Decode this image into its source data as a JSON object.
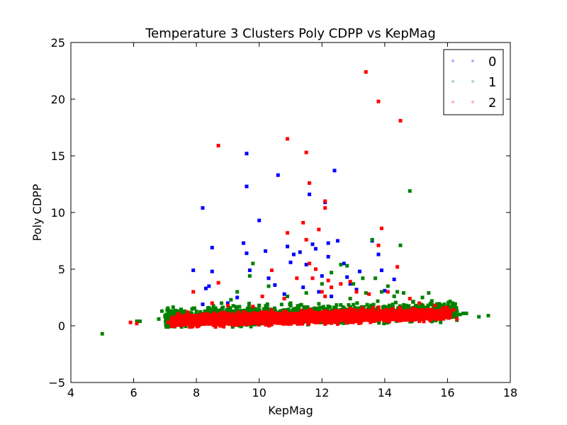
{
  "chart_data": {
    "type": "scatter",
    "title": "Temperature 3 Clusters Poly CDPP vs KepMag",
    "xlabel": "KepMag",
    "ylabel": "Poly CDPP",
    "xlim": [
      4,
      18
    ],
    "ylim": [
      -5,
      25
    ],
    "xticks": [
      "4",
      "6",
      "8",
      "10",
      "12",
      "14",
      "16",
      "18"
    ],
    "yticks": [
      "−5",
      "0",
      "5",
      "10",
      "15",
      "20",
      "25"
    ],
    "grid": false,
    "legend_position": "top-right",
    "series": [
      {
        "name": "0",
        "color": "#0000ff",
        "points": [
          [
            8.2,
            10.4
          ],
          [
            7.9,
            4.9
          ],
          [
            8.5,
            6.9
          ],
          [
            8.5,
            4.8
          ],
          [
            8.4,
            3.5
          ],
          [
            8.3,
            3.3
          ],
          [
            9.5,
            7.3
          ],
          [
            9.6,
            6.4
          ],
          [
            9.7,
            4.9
          ],
          [
            9.6,
            15.2
          ],
          [
            9.6,
            12.3
          ],
          [
            10.0,
            9.3
          ],
          [
            10.2,
            6.6
          ],
          [
            10.6,
            13.3
          ],
          [
            10.9,
            7.0
          ],
          [
            11.0,
            5.6
          ],
          [
            11.1,
            6.3
          ],
          [
            11.3,
            6.5
          ],
          [
            11.5,
            5.4
          ],
          [
            11.6,
            11.6
          ],
          [
            11.7,
            7.2
          ],
          [
            11.8,
            6.8
          ],
          [
            12.1,
            10.9
          ],
          [
            12.2,
            7.3
          ],
          [
            12.2,
            6.1
          ],
          [
            12.4,
            13.7
          ],
          [
            12.5,
            7.5
          ],
          [
            12.7,
            5.5
          ],
          [
            12.0,
            4.4
          ],
          [
            12.9,
            3.7
          ],
          [
            13.1,
            3.2
          ],
          [
            13.6,
            7.5
          ],
          [
            13.8,
            6.3
          ],
          [
            13.9,
            4.9
          ],
          [
            14.3,
            4.1
          ],
          [
            14.0,
            3.1
          ],
          [
            10.3,
            4.2
          ],
          [
            10.5,
            3.6
          ],
          [
            9.3,
            2.5
          ],
          [
            9.0,
            2.0
          ],
          [
            8.2,
            1.9
          ],
          [
            8.8,
            1.4
          ],
          [
            11.9,
            3.0
          ],
          [
            12.3,
            2.6
          ],
          [
            11.4,
            3.4
          ],
          [
            12.8,
            4.3
          ],
          [
            13.2,
            4.8
          ],
          [
            10.8,
            2.8
          ]
        ]
      },
      {
        "name": "1",
        "color": "#008000",
        "points": [
          [
            5.0,
            -0.7
          ],
          [
            6.1,
            0.4
          ],
          [
            6.2,
            0.4
          ],
          [
            6.8,
            0.6
          ],
          [
            6.9,
            1.3
          ],
          [
            7.0,
            0.8
          ],
          [
            7.3,
            0.7
          ],
          [
            7.6,
            0.6
          ],
          [
            8.4,
            1.6
          ],
          [
            8.8,
            2.0
          ],
          [
            9.1,
            2.3
          ],
          [
            9.3,
            3.0
          ],
          [
            9.8,
            5.5
          ],
          [
            9.7,
            4.4
          ],
          [
            10.3,
            3.5
          ],
          [
            10.9,
            2.6
          ],
          [
            11.5,
            2.9
          ],
          [
            12.0,
            3.7
          ],
          [
            12.3,
            4.7
          ],
          [
            12.6,
            5.4
          ],
          [
            12.8,
            5.3
          ],
          [
            13.0,
            3.7
          ],
          [
            13.3,
            4.2
          ],
          [
            13.6,
            7.6
          ],
          [
            13.7,
            4.2
          ],
          [
            13.9,
            3.0
          ],
          [
            14.1,
            3.5
          ],
          [
            14.4,
            3.0
          ],
          [
            14.5,
            7.1
          ],
          [
            14.6,
            2.9
          ],
          [
            14.8,
            11.9
          ],
          [
            14.9,
            2.1
          ],
          [
            15.2,
            2.5
          ],
          [
            15.4,
            2.9
          ],
          [
            15.5,
            2.2
          ],
          [
            15.9,
            1.9
          ],
          [
            16.3,
            1.3
          ],
          [
            16.4,
            1.0
          ],
          [
            16.5,
            1.1
          ],
          [
            16.6,
            1.1
          ],
          [
            17.0,
            0.8
          ],
          [
            17.3,
            0.9
          ],
          [
            16.3,
            0.5
          ],
          [
            14.3,
            2.6
          ],
          [
            13.4,
            2.9
          ],
          [
            12.9,
            2.4
          ],
          [
            11.0,
            2.0
          ],
          [
            10.0,
            1.8
          ]
        ]
      },
      {
        "name": "2",
        "color": "#ff0000",
        "points": [
          [
            5.9,
            0.3
          ],
          [
            6.1,
            0.2
          ],
          [
            7.1,
            0.3
          ],
          [
            7.4,
            0.2
          ],
          [
            7.9,
            3.0
          ],
          [
            8.5,
            2.0
          ],
          [
            8.7,
            15.9
          ],
          [
            8.7,
            3.8
          ],
          [
            9.0,
            1.8
          ],
          [
            9.5,
            1.2
          ],
          [
            9.8,
            1.7
          ],
          [
            10.1,
            2.6
          ],
          [
            10.4,
            4.9
          ],
          [
            10.8,
            2.4
          ],
          [
            10.9,
            16.5
          ],
          [
            10.9,
            8.2
          ],
          [
            11.2,
            4.2
          ],
          [
            11.4,
            9.1
          ],
          [
            11.5,
            15.3
          ],
          [
            11.6,
            12.6
          ],
          [
            11.5,
            7.6
          ],
          [
            11.6,
            5.5
          ],
          [
            11.7,
            4.2
          ],
          [
            11.8,
            5.0
          ],
          [
            11.9,
            8.5
          ],
          [
            12.0,
            3.0
          ],
          [
            12.1,
            2.6
          ],
          [
            12.1,
            11.0
          ],
          [
            12.1,
            10.4
          ],
          [
            12.2,
            4.0
          ],
          [
            12.3,
            3.4
          ],
          [
            12.6,
            3.7
          ],
          [
            12.9,
            3.9
          ],
          [
            13.1,
            3.0
          ],
          [
            13.4,
            22.4
          ],
          [
            13.5,
            2.8
          ],
          [
            13.8,
            19.8
          ],
          [
            13.8,
            7.1
          ],
          [
            13.9,
            8.6
          ],
          [
            14.1,
            3.0
          ],
          [
            14.4,
            5.2
          ],
          [
            14.5,
            18.1
          ],
          [
            14.8,
            2.4
          ],
          [
            15.1,
            2.0
          ],
          [
            15.6,
            1.8
          ],
          [
            16.0,
            1.2
          ],
          [
            16.2,
            1.4
          ],
          [
            16.3,
            0.6
          ]
        ]
      }
    ],
    "dense_bands": [
      {
        "series": "1",
        "color": "#008000",
        "x_range": [
          7.0,
          16.3
        ],
        "y_center_start": 0.7,
        "y_center_end": 1.3,
        "y_spread": 1.3,
        "count": 1500
      },
      {
        "series": "2",
        "color": "#ff0000",
        "x_range": [
          7.2,
          16.1
        ],
        "y_center_start": 0.45,
        "y_center_end": 1.05,
        "y_spread": 0.85,
        "count": 2600
      }
    ]
  }
}
